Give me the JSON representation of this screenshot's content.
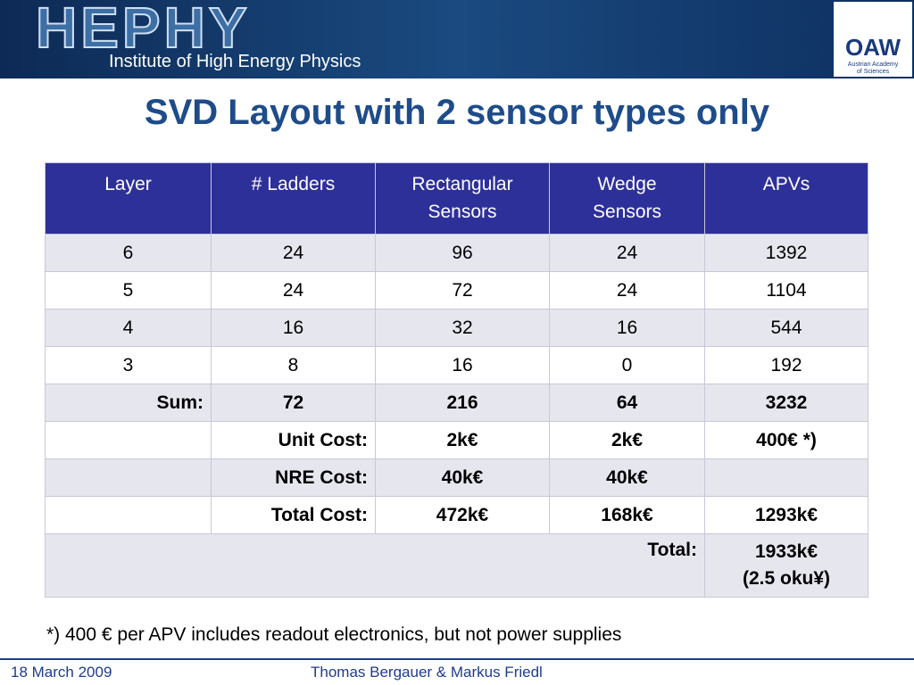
{
  "header": {
    "logo": "HEPHY",
    "institute": "Institute of High Energy Physics",
    "academy_logo": "OAW",
    "academy_name": "Austrian Academy of Sciences"
  },
  "title": "SVD Layout with 2 sensor types only",
  "table": {
    "columns": [
      "Layer",
      "# Ladders",
      "Rectangular Sensors",
      "Wedge Sensors",
      "APVs"
    ],
    "rows": [
      [
        "6",
        "24",
        "96",
        "24",
        "1392"
      ],
      [
        "5",
        "24",
        "72",
        "24",
        "1104"
      ],
      [
        "4",
        "16",
        "32",
        "16",
        "544"
      ],
      [
        "3",
        "8",
        "16",
        "0",
        "192"
      ]
    ],
    "sum": {
      "label": "Sum:",
      "values": [
        "72",
        "216",
        "64",
        "3232"
      ]
    },
    "costs": [
      {
        "label": "Unit Cost:",
        "values": [
          "2k€",
          "2k€",
          "400€ *)"
        ]
      },
      {
        "label": "NRE Cost:",
        "values": [
          "40k€",
          "40k€"
        ]
      },
      {
        "label": "Total Cost:",
        "values": [
          "472k€",
          "168k€",
          "1293k€"
        ]
      }
    ],
    "total": {
      "label": "Total:",
      "lines": [
        "1933k€",
        "(2.5 oku¥)"
      ]
    }
  },
  "footnote": "*) 400 € per APV includes readout electronics, but not power supplies",
  "footer": {
    "date": "18 March 2009",
    "authors": "Thomas Bergauer & Markus Friedl"
  }
}
